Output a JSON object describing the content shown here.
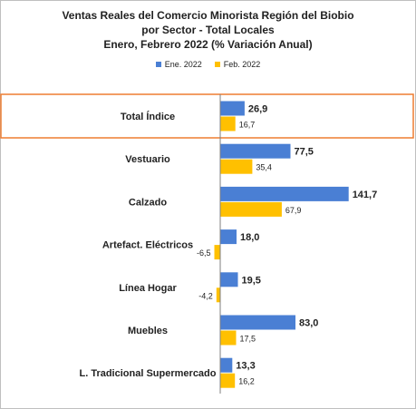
{
  "chart_data": {
    "type": "bar",
    "orientation": "horizontal",
    "title_lines": [
      "Ventas Reales del Comercio Minorista  Región del Biobio",
      "por Sector - Total Locales",
      "Enero, Febrero 2022  (% Variación Anual)"
    ],
    "categories": [
      "Total Índice",
      "Vestuario",
      "Calzado",
      "Artefact. Eléctricos",
      "Línea Hogar",
      "Muebles",
      "L. Tradicional Supermercado"
    ],
    "category_labels_bold": true,
    "highlighted_category": "Total Índice",
    "series": [
      {
        "name": "Ene. 2022",
        "color": "#4a7fd4",
        "values": [
          26.9,
          77.5,
          141.7,
          18.0,
          19.5,
          83.0,
          13.3
        ],
        "labels": [
          "26,9",
          "77,5",
          "141,7",
          "18,0",
          "19,5",
          "83,0",
          "13,3"
        ]
      },
      {
        "name": "Feb. 2022",
        "color": "#ffc000",
        "values": [
          16.7,
          35.4,
          67.9,
          -6.5,
          -4.2,
          17.5,
          16.2
        ],
        "labels": [
          "16,7",
          "35,4",
          "67,9",
          "-6,5",
          "-4,2",
          "17,5",
          "16,2"
        ]
      }
    ],
    "legend_position": "top-center",
    "highlight_color": "#ed7d31",
    "gridlines": false
  }
}
